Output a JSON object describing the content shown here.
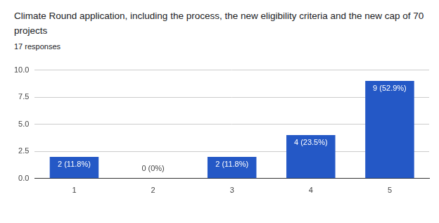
{
  "chart_data": {
    "type": "bar",
    "title": "Climate Round application, including the process, the new eligibility criteria and the new cap of 70 projects",
    "subtitle": "17 responses",
    "categories": [
      "1",
      "2",
      "3",
      "4",
      "5"
    ],
    "values": [
      2,
      0,
      2,
      4,
      9
    ],
    "value_labels": [
      "2 (11.8%)",
      "0 (0%)",
      "2 (11.8%)",
      "4 (23.5%)",
      "9 (52.9%)"
    ],
    "color": "#2458c6",
    "ylim": [
      0,
      10
    ],
    "yticks": [
      {
        "value": 0,
        "label": "0.0"
      },
      2.5,
      {
        "value": 5,
        "label": "5.0"
      },
      7.5,
      {
        "value": 10,
        "label": "10.0"
      }
    ],
    "grid": true,
    "data_labels": true
  }
}
